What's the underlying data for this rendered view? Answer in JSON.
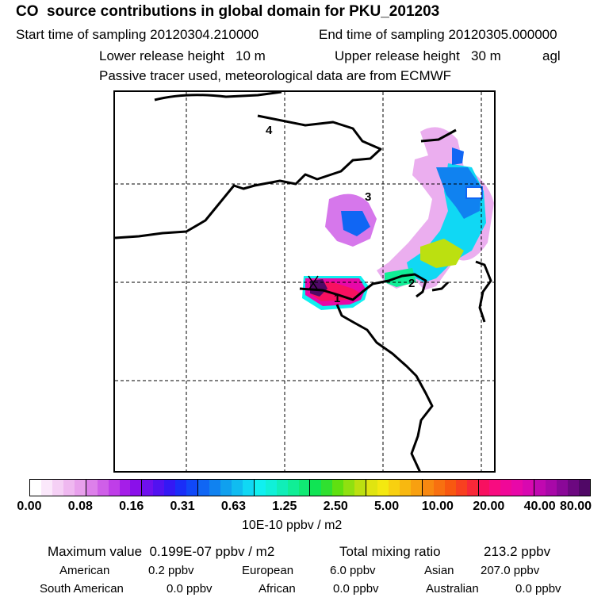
{
  "header": {
    "title": "CO  source contributions in global domain for PKU_201203",
    "start_label": "Start time of sampling 20120304.210000",
    "end_label": "End time of sampling 20120305.000000",
    "lower_label": "Lower release height   10 m",
    "upper_label": "Upper release height   30 m",
    "agl": "agl",
    "tracer_note": "Passive tracer used, meteorological data are from ECMWF"
  },
  "map": {
    "region_labels": [
      "1",
      "2",
      "3",
      "4"
    ],
    "receptor_marker": "x-mark"
  },
  "colorbar": {
    "colors": [
      "#ffffff",
      "#fbe8fb",
      "#f5d0f5",
      "#efb8f0",
      "#e8a0ec",
      "#dd80ea",
      "#cf5fe8",
      "#bf3ee8",
      "#a51ee8",
      "#8a10ea",
      "#6f10ee",
      "#5212f0",
      "#3418f4",
      "#1a2ef8",
      "#1048f8",
      "#1066f4",
      "#1082f0",
      "#10a0ee",
      "#10bcf0",
      "#10d8f4",
      "#10f0f0",
      "#10f0d8",
      "#10eeb8",
      "#10ee96",
      "#10ea74",
      "#10e454",
      "#30e030",
      "#60e010",
      "#90e010",
      "#bce010",
      "#e0e410",
      "#f4e810",
      "#f8d010",
      "#f8b810",
      "#f8a010",
      "#f88810",
      "#f87010",
      "#f85810",
      "#f84020",
      "#f82838",
      "#f81060",
      "#f80c80",
      "#f00898",
      "#e808a8",
      "#d808b0",
      "#c008b0",
      "#a808a8",
      "#8a0898",
      "#6c0880",
      "#500866"
    ],
    "tick_labels": [
      "0.00",
      "0.08",
      "0.16",
      "0.31",
      "0.63",
      "1.25",
      "2.50",
      "5.00",
      "10.00",
      "20.00",
      "40.00",
      "80.00"
    ],
    "units": "10E-10 ppbv / m2"
  },
  "summary": {
    "max_label": "Maximum value  0.199E-07 ppbv / m2",
    "total_label": "Total mixing ratio",
    "total_value": "213.2 ppbv",
    "regions": [
      {
        "name": "American",
        "value": "0.2 ppbv"
      },
      {
        "name": "European",
        "value": "6.0 ppbv"
      },
      {
        "name": "Asian",
        "value": "207.0 ppbv"
      },
      {
        "name": "South American",
        "value": "0.0 ppbv"
      },
      {
        "name": "African",
        "value": "0.0 ppbv"
      },
      {
        "name": "Australian",
        "value": "0.0 ppbv"
      }
    ]
  }
}
